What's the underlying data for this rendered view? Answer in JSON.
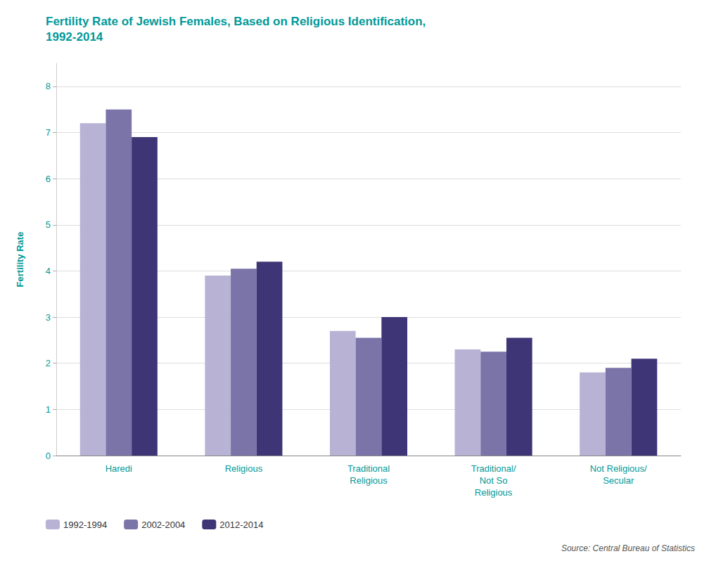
{
  "chart_data": {
    "type": "bar",
    "title": "Fertility Rate of Jewish Females, Based on Religious Identification,\n1992-2014",
    "ylabel": "Fertility Rate",
    "categories": [
      "Haredi",
      "Religious",
      "Traditional\nReligious",
      "Traditional/\nNot So\nReligious",
      "Not Religious/\nSecular"
    ],
    "series": [
      {
        "name": "1992-1994",
        "color": "#b8b3d4",
        "values": [
          7.2,
          3.9,
          2.7,
          2.3,
          1.8
        ]
      },
      {
        "name": "2002-2004",
        "color": "#7a74a8",
        "values": [
          7.5,
          4.05,
          2.55,
          2.25,
          1.9
        ]
      },
      {
        "name": "2012-2014",
        "color": "#3d3575",
        "values": [
          6.9,
          4.2,
          3.0,
          2.55,
          2.1
        ]
      }
    ],
    "ylim": [
      0,
      8.5
    ],
    "yticks": [
      0,
      1,
      2,
      3,
      4,
      5,
      6,
      7,
      8
    ],
    "grid": true,
    "legend": "bottom left",
    "annotations": [
      "Source: Central Bureau of Statistics"
    ]
  }
}
